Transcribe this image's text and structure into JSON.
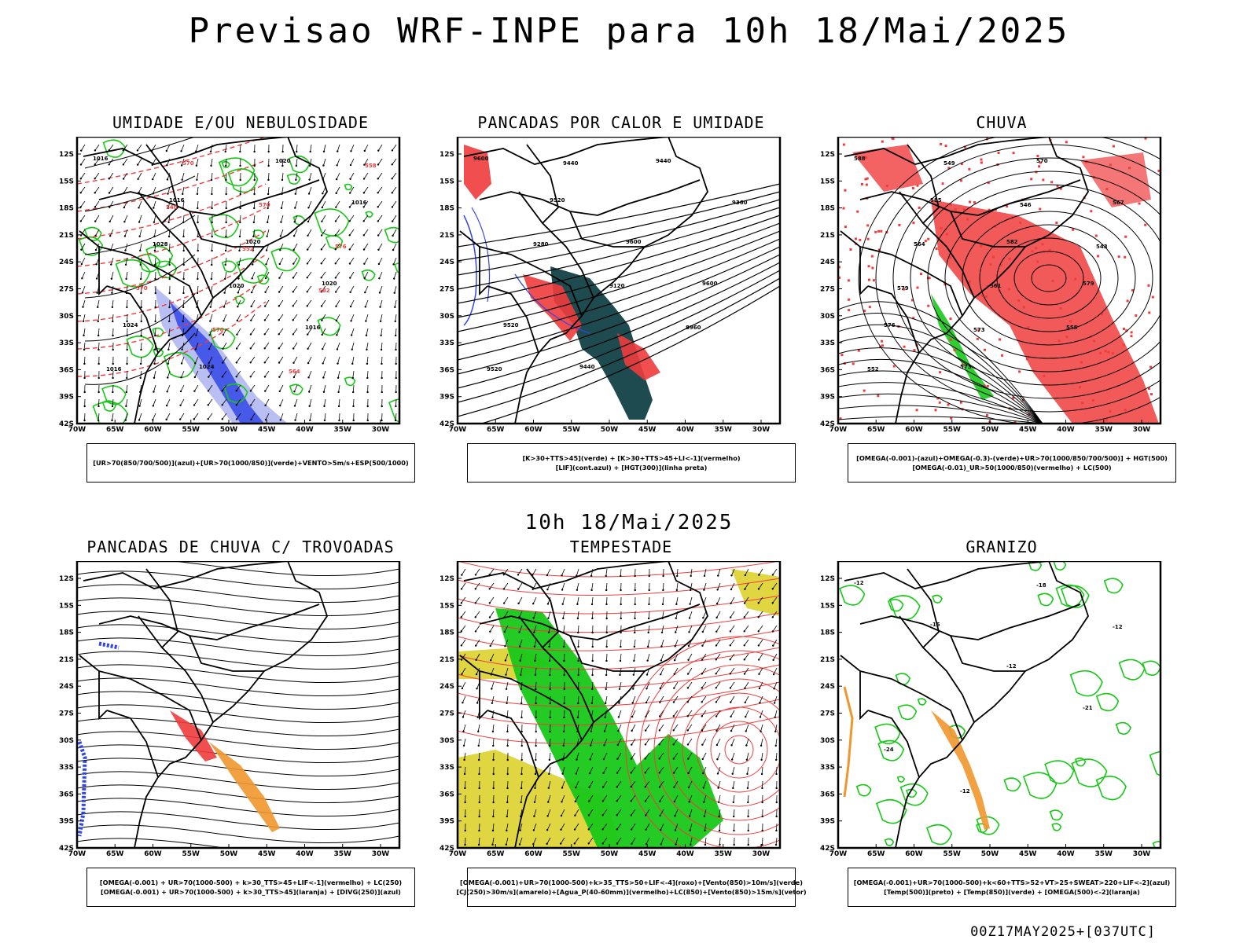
{
  "header": {
    "title": "Previsao WRF-INPE  para 10h 18/Mai/2025"
  },
  "mid_label": "10h 18/Mai/2025",
  "footer": "00Z17MAY2025+[037UTC]",
  "axes": {
    "lat_labels": [
      "12S",
      "15S",
      "18S",
      "21S",
      "24S",
      "27S",
      "30S",
      "33S",
      "36S",
      "39S",
      "42S"
    ],
    "lon_labels": [
      "70W",
      "65W",
      "60W",
      "55W",
      "50W",
      "45W",
      "40W",
      "35W",
      "30W"
    ]
  },
  "colors": {
    "red": "#f03c3c",
    "green": "#18c818",
    "blue": "#3246e6",
    "orange": "#f0962d",
    "yellow": "#dcd22d",
    "teal": "#1e4b50"
  },
  "panels": [
    {
      "title": "UMIDADE E/OU NEBULOSIDADE",
      "legend": [
        "[UR>70(850/700/500)](azul)+[UR>70(1000/850)](verde)+VENTO>5m/s+ESP(500/1000)"
      ]
    },
    {
      "title": "PANCADAS POR CALOR E UMIDADE",
      "legend": [
        "[K>30+TTS>45](verde) + [K>30+TTS>45+LI<-1](vermelho)",
        "[LIF](cont.azul) + [HGT(300)](linha preta)"
      ]
    },
    {
      "title": "CHUVA",
      "legend": [
        "[OMEGA(-0.001)-(azul)+OMEGA(-0.3)-(verde)+UR>70(1000/850/700/500)] + HGT(500)",
        "[OMEGA(-0.01)_UR>50(1000/850)(vermelho) + LC(500)"
      ]
    },
    {
      "title": "PANCADAS DE CHUVA C/ TROVOADAS",
      "legend": [
        "[OMEGA(-0.001) + UR>70(1000-500) + k>30_TTS>45+LIF<-1](vermelho) + LC(250)",
        "[OMEGA(-0.001) + UR>70(1000-500) + k>30_TTS>45](laranja) + [DIVG(250)](azul)"
      ]
    },
    {
      "title": "TEMPESTADE",
      "legend": [
        "[OMEGA(-0.001)+UR>70(1000-500)+k>35_TTS>50+LIF<-4](roxo)+[Vento(850)>10m/s](verde)",
        "[CJ(250)>30m/s](amarelo)+[Agua_P(40-60mm)](vermelho)+LC(850)+[Vento(850)>15m/s](vetor)"
      ]
    },
    {
      "title": "GRANIZO",
      "legend": [
        "[OMEGA(-0.001)+UR>70(1000-500)+k<60+TTS>52+VT>25+SWEAT>220+LIF<-2](azul)",
        "[Temp(500)](preto) + [Temp(850)](verde) + [OMEGA(500)<-2](laranja)"
      ]
    }
  ],
  "contour_labels": {
    "p1": [
      "1016",
      "1016",
      "1020",
      "1020",
      "1024",
      "1024",
      "1020",
      "1016",
      "1028",
      "1020",
      "1016",
      "1016",
      "570",
      "570",
      "576",
      "570",
      "570",
      "564",
      "558",
      "540",
      "552",
      "582"
    ],
    "p2": [
      "9600",
      "9520",
      "9600",
      "9600",
      "9520",
      "9440",
      "9440",
      "9360",
      "9280",
      "9120",
      "8960",
      "9520",
      "9440"
    ],
    "p3": [
      "588",
      "585",
      "582",
      "579",
      "576",
      "573",
      "570",
      "567",
      "564",
      "561",
      "555",
      "552",
      "549",
      "546",
      "543",
      "579",
      "573"
    ],
    "p6": [
      "-12",
      "-15",
      "-12",
      "-21",
      "-24",
      "-12",
      "-18",
      "-12"
    ]
  }
}
